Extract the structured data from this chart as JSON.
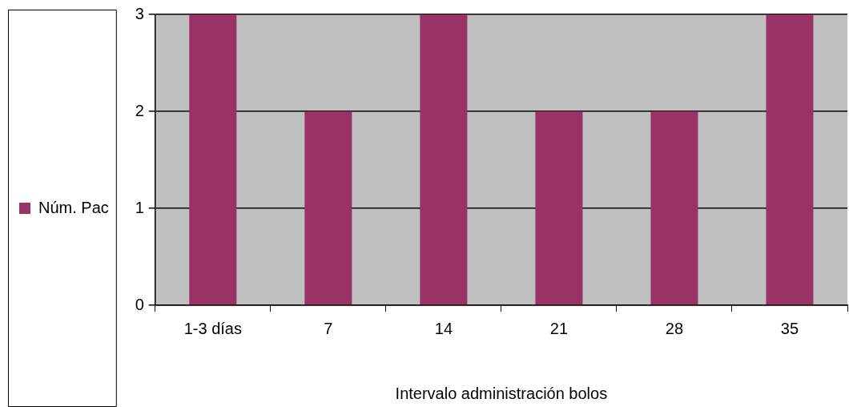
{
  "chart_data": {
    "type": "bar",
    "xlabel": "Intervalo administración bolos",
    "categories": [
      "1-3 días",
      "7",
      "14",
      "21",
      "28",
      "35"
    ],
    "series": [
      {
        "name": "Núm. Pac",
        "color": "#993366",
        "values": [
          3,
          2,
          3,
          2,
          2,
          3
        ]
      }
    ],
    "ylim": [
      0,
      3
    ],
    "yticks": [
      0,
      1,
      2,
      3
    ],
    "grid": "y",
    "legend": "left"
  }
}
